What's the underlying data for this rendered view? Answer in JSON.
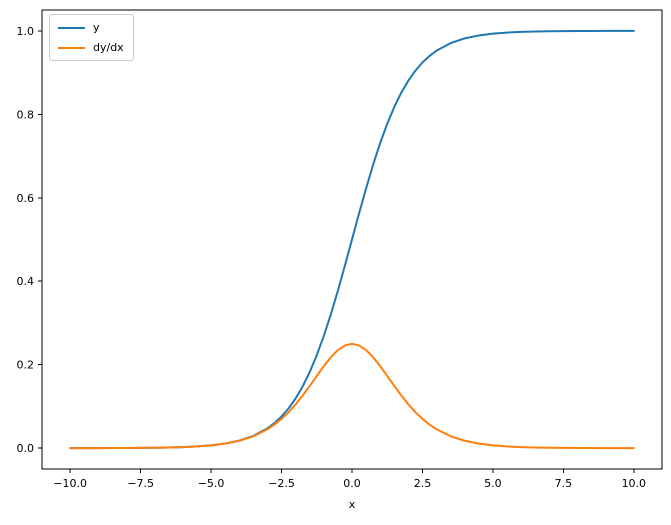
{
  "figure": {
    "background": "#ffffff",
    "text_color": "#000000"
  },
  "legend": {
    "position": "upper left",
    "entries": [
      {
        "label": "y",
        "color": "#1f77b4"
      },
      {
        "label": "dy/dx",
        "color": "#ff7f0e"
      }
    ]
  },
  "chart_data": {
    "type": "line",
    "title": "",
    "xlabel": "x",
    "ylabel": "",
    "grid": false,
    "legend_position": "upper left",
    "xlim": [
      -11,
      11
    ],
    "ylim": [
      -0.05,
      1.05
    ],
    "x_ticks": [
      -10.0,
      -7.5,
      -5.0,
      -2.5,
      0.0,
      2.5,
      5.0,
      7.5,
      10.0
    ],
    "x_tick_labels": [
      "−10.0",
      "−7.5",
      "−5.0",
      "−2.5",
      "0.0",
      "2.5",
      "5.0",
      "7.5",
      "10.0"
    ],
    "y_ticks": [
      0.0,
      0.2,
      0.4,
      0.6,
      0.8,
      1.0
    ],
    "y_tick_labels": [
      "0.0",
      "0.2",
      "0.4",
      "0.6",
      "0.8",
      "1.0"
    ],
    "x": [
      -10,
      -9.5,
      -9,
      -8.5,
      -8,
      -7.5,
      -7,
      -6.5,
      -6,
      -5.5,
      -5,
      -4.5,
      -4,
      -3.5,
      -3,
      -2.75,
      -2.5,
      -2.25,
      -2,
      -1.75,
      -1.5,
      -1.25,
      -1,
      -0.75,
      -0.5,
      -0.25,
      0,
      0.25,
      0.5,
      0.75,
      1,
      1.25,
      1.5,
      1.75,
      2,
      2.25,
      2.5,
      2.75,
      3,
      3.5,
      4,
      4.5,
      5,
      5.5,
      6,
      6.5,
      7,
      7.5,
      8,
      8.5,
      9,
      9.5,
      10
    ],
    "series": [
      {
        "name": "y",
        "color": "#1f77b4",
        "values": [
          0.0,
          0.0001,
          0.0001,
          0.0002,
          0.0003,
          0.0006,
          0.0009,
          0.0015,
          0.0025,
          0.0041,
          0.0067,
          0.011,
          0.018,
          0.0293,
          0.0474,
          0.0601,
          0.0759,
          0.0953,
          0.1192,
          0.148,
          0.1824,
          0.2227,
          0.2689,
          0.3208,
          0.3775,
          0.4378,
          0.5,
          0.5622,
          0.6225,
          0.6792,
          0.7311,
          0.7773,
          0.8176,
          0.852,
          0.8808,
          0.9047,
          0.9241,
          0.9399,
          0.9526,
          0.9707,
          0.982,
          0.989,
          0.9933,
          0.9959,
          0.9975,
          0.9985,
          0.9991,
          0.9994,
          0.9997,
          0.9998,
          0.9999,
          0.9999,
          1.0
        ]
      },
      {
        "name": "dy/dx",
        "color": "#ff7f0e",
        "values": [
          0.0,
          0.0001,
          0.0001,
          0.0002,
          0.0003,
          0.0006,
          0.0009,
          0.0015,
          0.0025,
          0.0041,
          0.0066,
          0.0109,
          0.0177,
          0.0284,
          0.0452,
          0.0565,
          0.0701,
          0.0862,
          0.105,
          0.1261,
          0.1491,
          0.1731,
          0.1966,
          0.2179,
          0.235,
          0.2461,
          0.25,
          0.2461,
          0.235,
          0.2179,
          0.1966,
          0.1731,
          0.1491,
          0.1261,
          0.105,
          0.0862,
          0.0701,
          0.0565,
          0.0452,
          0.0284,
          0.0177,
          0.0109,
          0.0066,
          0.0041,
          0.0025,
          0.0015,
          0.0009,
          0.0006,
          0.0003,
          0.0002,
          0.0001,
          0.0001,
          0.0
        ]
      }
    ]
  }
}
